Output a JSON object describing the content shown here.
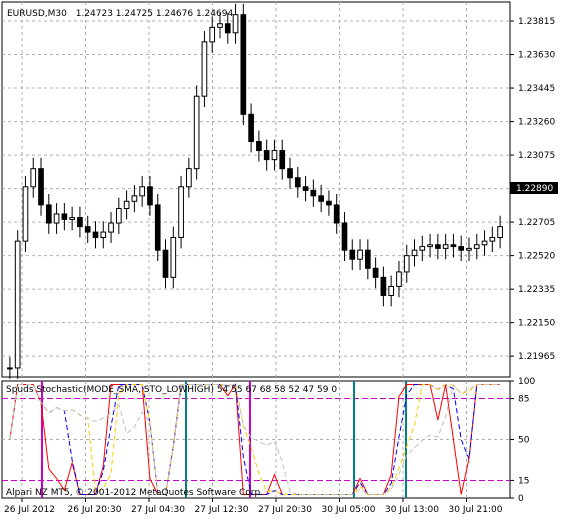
{
  "header": {
    "symbol": "EURUSD,M30",
    "ohlc": "1.24723 1.24725 1.24676 1.24694"
  },
  "price_axis": {
    "ticks": [
      "1.23815",
      "1.23630",
      "1.23445",
      "1.23260",
      "1.23075",
      "1.22890",
      "1.22705",
      "1.22520",
      "1.22335",
      "1.22150",
      "1.21965"
    ],
    "current": "1.22890"
  },
  "indicator": {
    "title": "Spuds Stochastic(MODE_SMA, STO_LOWHIGH) 54 55 67 68 58 52 47 59 0",
    "levels": [
      "100",
      "85",
      "50",
      "15",
      "0"
    ],
    "colors": [
      "#ff0000",
      "#0000ff",
      "#ffcc00",
      "#c0c0c0"
    ]
  },
  "time_axis": {
    "labels": [
      "26 Jul 2012",
      "26 Jul 20:30",
      "27 Jul 04:30",
      "27 Jul 12:30",
      "27 Jul 20:30",
      "30 Jul 05:00",
      "30 Jul 13:00",
      "30 Jul 21:00"
    ]
  },
  "copyright": "Alpari NZ MT5, © 2001-2012 MetaQuotes Software Corp.",
  "chart_data": {
    "type": "candlestick",
    "price_axis_range": [
      1.2185,
      1.2392
    ],
    "close_series": [
      1.219,
      1.226,
      1.229,
      1.23,
      1.228,
      1.227,
      1.2275,
      1.2272,
      1.2273,
      1.2268,
      1.2265,
      1.2262,
      1.2265,
      1.227,
      1.2278,
      1.2282,
      1.2285,
      1.229,
      1.228,
      1.2255,
      1.224,
      1.2262,
      1.229,
      1.23,
      1.234,
      1.237,
      1.2378,
      1.238,
      1.2375,
      1.2385,
      1.233,
      1.2315,
      1.231,
      1.2305,
      1.231,
      1.23,
      1.2295,
      1.229,
      1.2288,
      1.2285,
      1.2282,
      1.228,
      1.227,
      1.2255,
      1.225,
      1.2255,
      1.2245,
      1.224,
      1.223,
      1.2235,
      1.2243,
      1.2252,
      1.2255,
      1.2257,
      1.2258,
      1.2256,
      1.2258,
      1.2257,
      1.2255,
      1.2256,
      1.2258,
      1.226,
      1.2262,
      1.2268
    ],
    "stochastic_levels": [
      100,
      85,
      50,
      15,
      0
    ]
  }
}
